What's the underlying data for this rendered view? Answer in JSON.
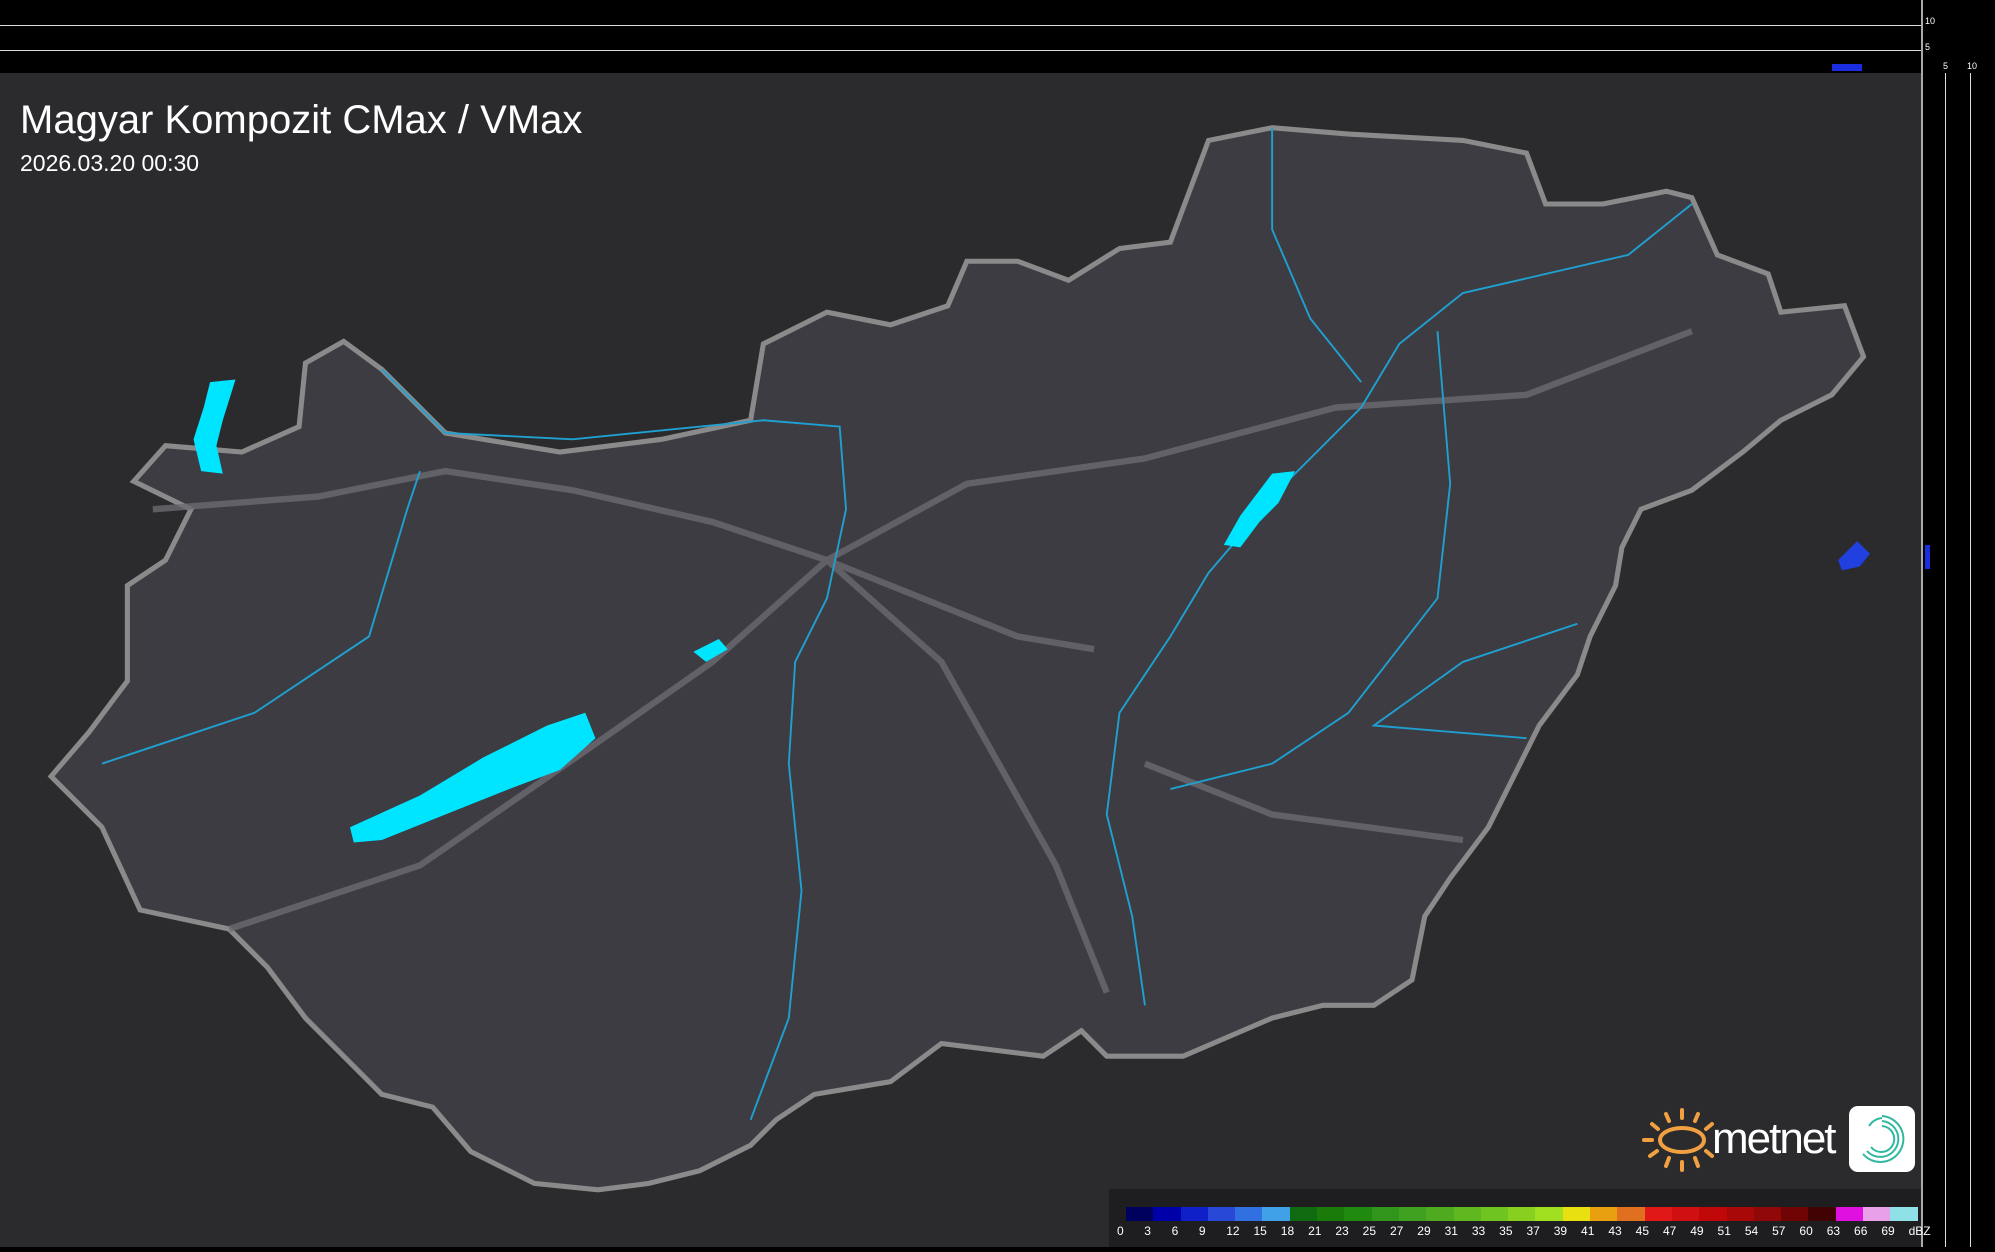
{
  "header": {
    "title": "Magyar Kompozit CMax / VMax",
    "timestamp": "2026.03.20 00:30"
  },
  "top_profile": {
    "ticks": [
      "10",
      "5"
    ]
  },
  "side_profile": {
    "ticks": [
      "5",
      "10"
    ]
  },
  "legend": {
    "unit": "dBZ",
    "labels": [
      "0",
      "3",
      "6",
      "9",
      "12",
      "15",
      "18",
      "21",
      "23",
      "25",
      "27",
      "29",
      "31",
      "33",
      "35",
      "37",
      "39",
      "41",
      "43",
      "45",
      "47",
      "49",
      "51",
      "54",
      "57",
      "60",
      "63",
      "66",
      "69"
    ],
    "colors": [
      "#00005e",
      "#0000a8",
      "#1020c8",
      "#2848d8",
      "#3070e0",
      "#40a0e8",
      "#106a10",
      "#1a7a0a",
      "#208a10",
      "#30951a",
      "#40a020",
      "#50aa20",
      "#60b820",
      "#70c420",
      "#88d020",
      "#a0e020",
      "#e8e010",
      "#e8a010",
      "#e07020",
      "#e01818",
      "#d01010",
      "#c00808",
      "#a80808",
      "#900808",
      "#700404",
      "#400202",
      "#e010e0",
      "#e8a0e8",
      "#90e0e8"
    ]
  },
  "logo": {
    "text": "metnet",
    "sun_color": "#f0a040",
    "icon_color": "#30b8a0"
  },
  "colors": {
    "water": "#00e5ff",
    "river": "#20a0d0",
    "border": "#8a8a8a",
    "echo": "#2040e0"
  }
}
